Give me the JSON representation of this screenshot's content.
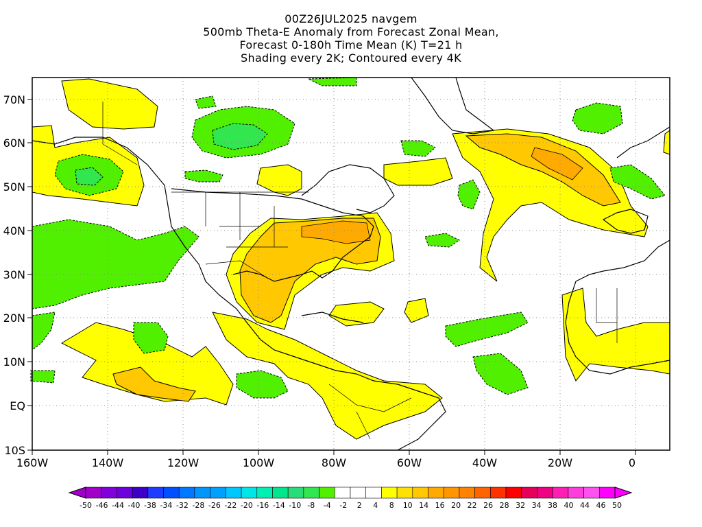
{
  "title": {
    "line1": "00Z26JUL2025 navgem",
    "line2": "500mb Theta-E Anomaly from Forecast Zonal Mean,",
    "line3": "Forecast 0-180h Time Mean (K) T=21 h",
    "line4": "Shading every 2K; Contoured every 4K"
  },
  "axes": {
    "lat_labels": [
      "70N",
      "60N",
      "50N",
      "40N",
      "30N",
      "20N",
      "10N",
      "EQ",
      "10S"
    ],
    "lon_labels": [
      "160W",
      "140W",
      "120W",
      "100W",
      "80W",
      "60W",
      "40W",
      "20W",
      "0"
    ]
  },
  "colorbar": {
    "labels": [
      "-50",
      "-46",
      "-44",
      "-40",
      "-38",
      "-34",
      "-32",
      "-28",
      "-26",
      "-22",
      "-20",
      "-16",
      "-14",
      "-10",
      "-8",
      "-4",
      "-2",
      "2",
      "4",
      "8",
      "10",
      "14",
      "16",
      "20",
      "22",
      "26",
      "28",
      "32",
      "34",
      "38",
      "40",
      "44",
      "46",
      "50"
    ],
    "colors": [
      "#a000c8",
      "#8200dc",
      "#6e00dc",
      "#3c00c8",
      "#1e3cff",
      "#0050ff",
      "#0078ff",
      "#0096ff",
      "#00a0ff",
      "#00c8ff",
      "#00e6e6",
      "#00f0b4",
      "#00e68c",
      "#28dc78",
      "#32e650",
      "#50f000",
      "#ffffff",
      "#ffffff",
      "#ffffff",
      "#ffff00",
      "#ffe100",
      "#ffc800",
      "#ffaa00",
      "#ff9600",
      "#ff8200",
      "#ff6400",
      "#ff3200",
      "#ff0000",
      "#e6005a",
      "#f00082",
      "#ff1eb4",
      "#ff3cdc",
      "#ff50f0",
      "#ff00ff"
    ]
  },
  "field_colors": {
    "positive": "#ffff00",
    "positive_strong": "#ffc800",
    "positive_core": "#ffaa00",
    "negative": "#50f000",
    "negative_core": "#32e650"
  }
}
